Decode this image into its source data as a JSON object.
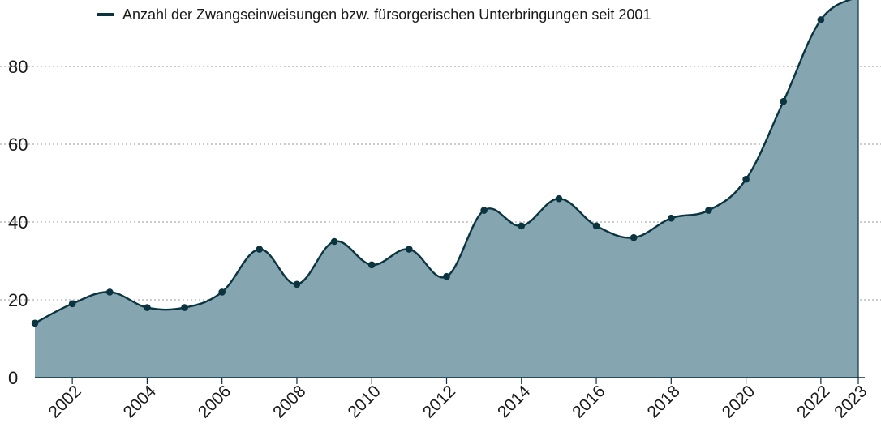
{
  "colors": {
    "line": "#0b3441",
    "area": "#85a6b1",
    "marker": "#0b3441"
  },
  "chart_data": {
    "type": "area",
    "title": "",
    "xlabel": "",
    "ylabel": "",
    "x": [
      2001,
      2002,
      2003,
      2004,
      2005,
      2006,
      2007,
      2008,
      2009,
      2010,
      2011,
      2012,
      2013,
      2014,
      2015,
      2016,
      2017,
      2018,
      2019,
      2020,
      2021,
      2022,
      2023
    ],
    "series": [
      {
        "name": "Anzahl der Zwangseinweisungen bzw. fürsorgerischen Unterbringungen seit 2001",
        "values": [
          14,
          19,
          22,
          18,
          18,
          22,
          33,
          24,
          35,
          29,
          33,
          26,
          43,
          39,
          46,
          39,
          36,
          41,
          43,
          51,
          71,
          92,
          98
        ]
      }
    ],
    "xlim": [
      2001,
      2023
    ],
    "ylim": [
      0,
      98
    ],
    "y_ticks": [
      "0",
      "20",
      "40",
      "60",
      "80"
    ],
    "x_ticks": [
      "2002",
      "2004",
      "2006",
      "2008",
      "2010",
      "2012",
      "2014",
      "2016",
      "2018",
      "2020",
      "2022",
      "2023"
    ],
    "grid": "horizontal dashed",
    "legend_position": "top-left",
    "legend_label": "Anzahl der Zwangseinweisungen bzw. fürsorgerischen Unterbringungen seit 2001"
  }
}
